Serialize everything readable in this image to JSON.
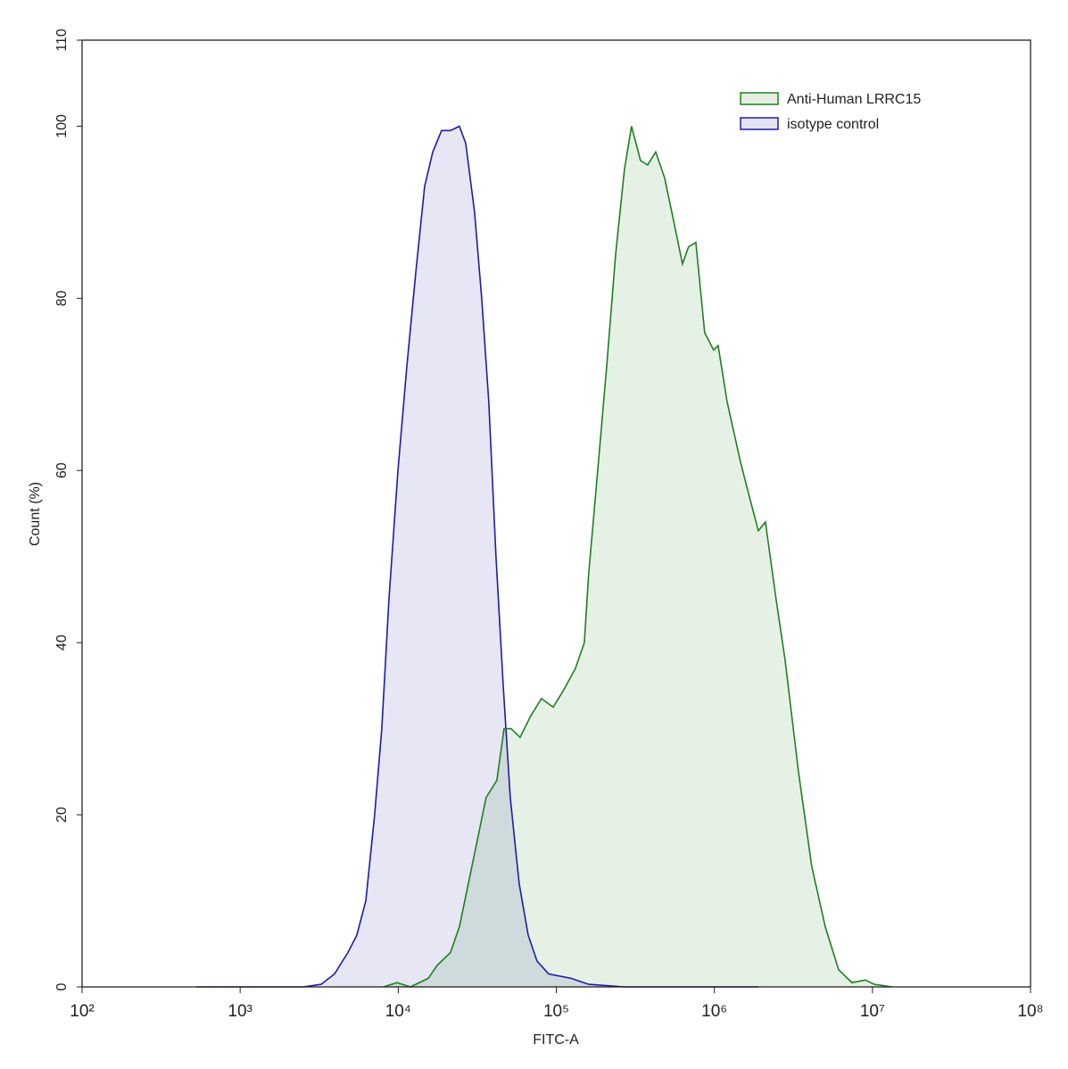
{
  "chart_data": {
    "type": "histogram-overlay",
    "xlabel": "FITC-A",
    "ylabel": "Count  (%)",
    "xscale": "log",
    "xlim": [
      100,
      100000000
    ],
    "xticks": [
      {
        "value": 100,
        "label": "10²"
      },
      {
        "value": 1000,
        "label": "10³"
      },
      {
        "value": 10000,
        "label": "10⁴"
      },
      {
        "value": 100000,
        "label": "10⁵"
      },
      {
        "value": 1000000,
        "label": "10⁶"
      },
      {
        "value": 10000000,
        "label": "10⁷"
      },
      {
        "value": 100000000,
        "label": "10⁸"
      }
    ],
    "ylim": [
      0,
      110
    ],
    "yticks": [
      0,
      20,
      40,
      60,
      80,
      100,
      110
    ],
    "legend": "top-right",
    "series": [
      {
        "name": "Anti-Human LRRC15",
        "color": "#1f7f1f",
        "x": [
          8077,
          9817,
          11940,
          15490,
          17620,
          21420,
          24380,
          27780,
          31620,
          35970,
          42070,
          46670,
          51760,
          58970,
          68970,
          80540,
          95500,
          111400,
          132100,
          150300,
          160300,
          182800,
          208000,
          237100,
          269800,
          299200,
          341200,
          378400,
          425600,
          484200,
          552100,
          628100,
          687100,
          763500,
          868800,
          988600,
          1057000,
          1203000,
          1462000,
          1663000,
          1897000,
          2104000,
          2460000,
          2799000,
          3404000,
          4130000,
          5023000,
          6109000,
          7413000,
          9016000,
          10260000,
          13300000
        ],
        "values": [
          0,
          0.5,
          0,
          1,
          2.5,
          4,
          7,
          12,
          17,
          22,
          24,
          30,
          30,
          29,
          31.5,
          33.5,
          32.5,
          34.5,
          37,
          40,
          48,
          60,
          72,
          85,
          95,
          100,
          96,
          95.5,
          97,
          94,
          89,
          84,
          86,
          86.5,
          76,
          74,
          74.5,
          68,
          61,
          57,
          53,
          54,
          45,
          38,
          25,
          14,
          7,
          2,
          0.5,
          0.8,
          0.3,
          0
        ]
      },
      {
        "name": "isotype control",
        "color": "#1c1ca8",
        "x": [
          527,
          1493,
          2512,
          3252,
          3954,
          4806,
          5470,
          6237,
          7096,
          7870,
          8730,
          9954,
          11330,
          12910,
          14690,
          16520,
          18790,
          21420,
          24380,
          26730,
          30410,
          33730,
          37410,
          41560,
          46130,
          51170,
          58210,
          66370,
          75510,
          89540,
          123900,
          160300,
          269800,
          1897000
        ],
        "values": [
          0,
          0,
          0,
          0.3,
          1.5,
          4,
          6,
          10,
          20,
          30,
          45,
          60,
          72,
          83,
          93,
          97,
          99.5,
          99.5,
          100,
          98,
          90,
          80,
          68,
          50,
          35,
          22,
          12,
          6,
          3,
          1.5,
          1,
          0.3,
          0,
          0
        ]
      }
    ]
  }
}
